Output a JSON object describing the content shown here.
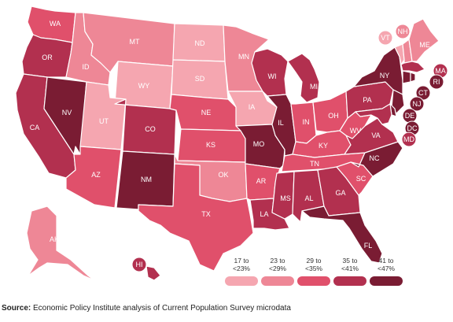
{
  "colors": {
    "b1": "#f5a6b0",
    "b2": "#ee8796",
    "b3": "#e0506b",
    "b4": "#b2304f",
    "b5": "#7a1c33"
  },
  "legend": [
    {
      "top": "17 to",
      "bottom": "<23%",
      "bin": "b1"
    },
    {
      "top": "23 to",
      "bottom": "<29%",
      "bin": "b2"
    },
    {
      "top": "29 to",
      "bottom": "<35%",
      "bin": "b3"
    },
    {
      "top": "35 to",
      "bottom": "<41%",
      "bin": "b4"
    },
    {
      "top": "41 to",
      "bottom": "<47%",
      "bin": "b5"
    }
  ],
  "states": {
    "WA": "b3",
    "OR": "b4",
    "CA": "b4",
    "NV": "b5",
    "ID": "b2",
    "MT": "b2",
    "WY": "b1",
    "UT": "b1",
    "AZ": "b3",
    "CO": "b4",
    "NM": "b5",
    "ND": "b1",
    "SD": "b1",
    "NE": "b3",
    "KS": "b3",
    "OK": "b2",
    "TX": "b3",
    "MN": "b2",
    "IA": "b1",
    "MO": "b5",
    "AR": "b3",
    "LA": "b4",
    "WI": "b4",
    "IL": "b5",
    "MI": "b4",
    "IN": "b3",
    "OH": "b3",
    "KY": "b3",
    "TN": "b3",
    "MS": "b4",
    "AL": "b4",
    "GA": "b4",
    "FL": "b5",
    "SC": "b3",
    "NC": "b5",
    "VA": "b4",
    "WV": "b3",
    "PA": "b4",
    "NY": "b5",
    "VT": "b1",
    "NH": "b2",
    "ME": "b2",
    "MA": "b4",
    "RI": "b5",
    "CT": "b5",
    "NJ": "b5",
    "DE": "b5",
    "MD": "b4",
    "DC": "b5",
    "AK": "b2",
    "HI": "b4"
  },
  "source": {
    "label": "Source:",
    "text": " Economic Policy Institute analysis of Current Population Survey microdata"
  }
}
